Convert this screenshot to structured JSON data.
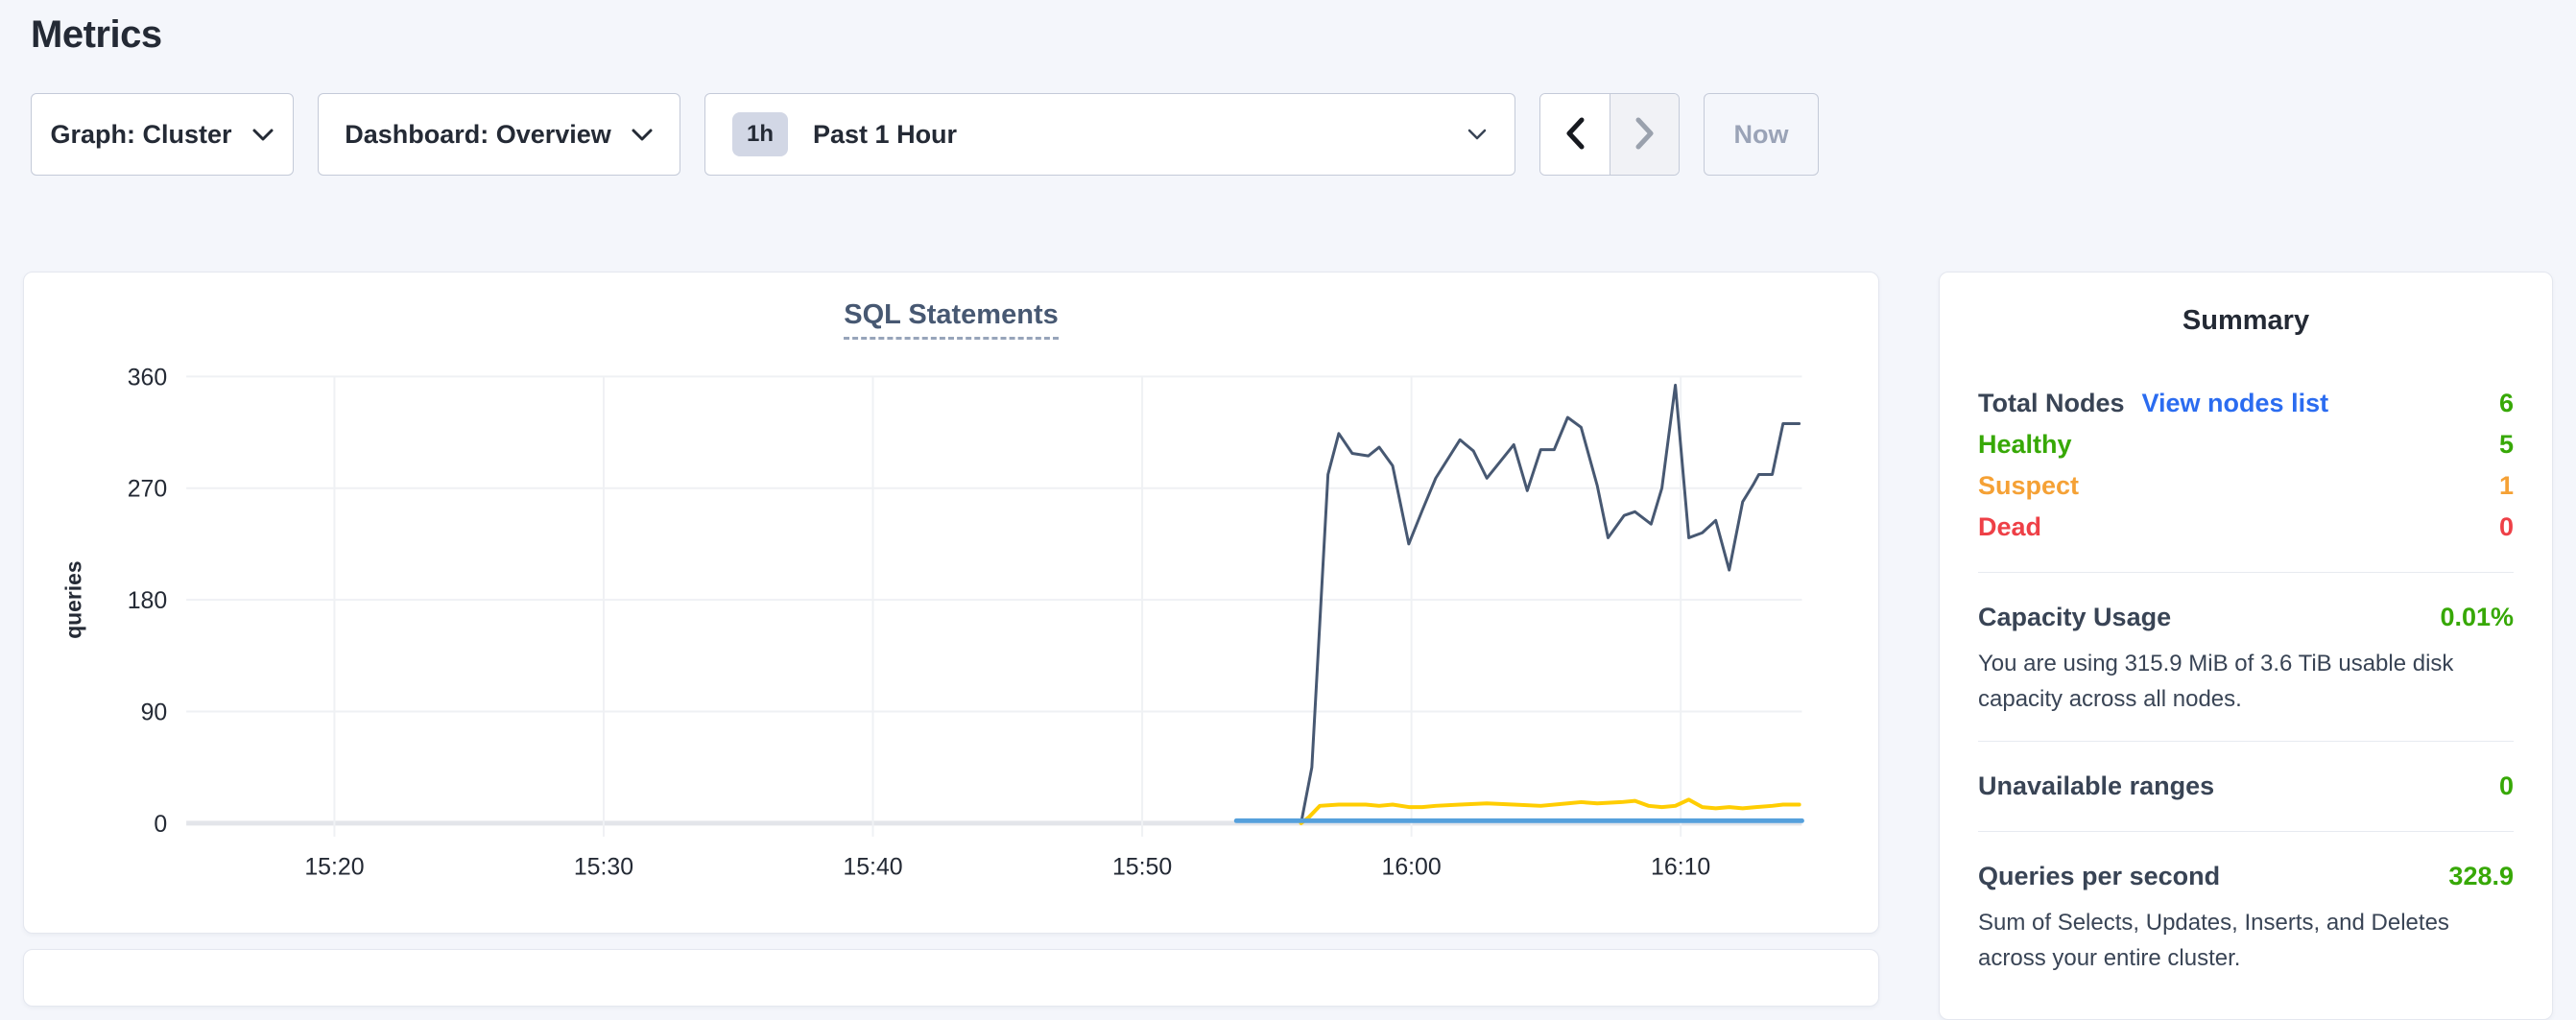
{
  "page": {
    "title": "Metrics"
  },
  "toolbar": {
    "graph_dropdown": {
      "label": "Graph: Cluster"
    },
    "dashboard_dropdown": {
      "label": "Dashboard: Overview"
    },
    "time_window": {
      "badge": "1h",
      "label": "Past 1 Hour"
    },
    "now_button": "Now"
  },
  "chart_card": {
    "title": "SQL Statements"
  },
  "chart_data": {
    "type": "line",
    "title": "SQL Statements",
    "xlabel": "",
    "ylabel": "queries",
    "ylim": [
      0,
      360
    ],
    "yticks": [
      0,
      90,
      180,
      270,
      360
    ],
    "x_unit": "minutes-after-15:00",
    "xlim_minutes": [
      14.5,
      74.5
    ],
    "xticks": [
      {
        "t": 20,
        "label": "15:20"
      },
      {
        "t": 30,
        "label": "15:30"
      },
      {
        "t": 40,
        "label": "15:40"
      },
      {
        "t": 50,
        "label": "15:50"
      },
      {
        "t": 60,
        "label": "16:00"
      },
      {
        "t": 70,
        "label": "16:10"
      }
    ],
    "grid": true,
    "legend": "none",
    "series": [
      {
        "name": "dark-slate-series",
        "color": "#475872",
        "points": [
          [
            55.9,
            0
          ],
          [
            56.3,
            45
          ],
          [
            56.9,
            281
          ],
          [
            57.3,
            314
          ],
          [
            57.8,
            298
          ],
          [
            58.4,
            296
          ],
          [
            58.8,
            303
          ],
          [
            59.3,
            288
          ],
          [
            59.9,
            225
          ],
          [
            60.4,
            252
          ],
          [
            60.9,
            278
          ],
          [
            61.8,
            309
          ],
          [
            62.3,
            300
          ],
          [
            62.8,
            278
          ],
          [
            63.8,
            305
          ],
          [
            64.3,
            268
          ],
          [
            64.8,
            301
          ],
          [
            65.3,
            301
          ],
          [
            65.8,
            327
          ],
          [
            66.3,
            319
          ],
          [
            66.9,
            272
          ],
          [
            67.3,
            230
          ],
          [
            67.9,
            248
          ],
          [
            68.3,
            251
          ],
          [
            68.9,
            241
          ],
          [
            69.3,
            270
          ],
          [
            69.8,
            353
          ],
          [
            70.3,
            230
          ],
          [
            70.8,
            234
          ],
          [
            71.3,
            244
          ],
          [
            71.8,
            204
          ],
          [
            72.3,
            259
          ],
          [
            72.7,
            273
          ],
          [
            72.9,
            281
          ],
          [
            73.4,
            281
          ],
          [
            73.8,
            322
          ],
          [
            74.4,
            322
          ]
        ]
      },
      {
        "name": "yellow-series",
        "color": "#ffcd02",
        "points": [
          [
            55.9,
            0
          ],
          [
            56.2,
            5
          ],
          [
            56.6,
            14
          ],
          [
            57.3,
            15
          ],
          [
            58.3,
            15
          ],
          [
            58.8,
            14
          ],
          [
            59.3,
            15
          ],
          [
            59.9,
            13
          ],
          [
            60.4,
            13
          ],
          [
            60.9,
            14
          ],
          [
            61.8,
            15
          ],
          [
            62.8,
            16
          ],
          [
            63.8,
            15
          ],
          [
            64.8,
            14
          ],
          [
            65.8,
            16
          ],
          [
            66.3,
            17
          ],
          [
            66.9,
            16
          ],
          [
            67.8,
            17
          ],
          [
            68.3,
            18
          ],
          [
            68.8,
            14
          ],
          [
            69.3,
            13
          ],
          [
            69.8,
            14
          ],
          [
            70.3,
            19
          ],
          [
            70.8,
            13
          ],
          [
            71.3,
            12
          ],
          [
            71.8,
            13
          ],
          [
            72.3,
            12
          ],
          [
            72.8,
            13
          ],
          [
            73.4,
            14
          ],
          [
            73.8,
            15
          ],
          [
            74.4,
            15
          ]
        ]
      },
      {
        "name": "blue-series",
        "color": "#55a0dc",
        "points": [
          [
            53.5,
            2
          ],
          [
            74.5,
            2
          ]
        ]
      }
    ]
  },
  "summary": {
    "title": "Summary",
    "nodes": {
      "label": "Total Nodes",
      "link": "View nodes list",
      "value": "6",
      "rows": [
        {
          "label": "Healthy",
          "value": "5"
        },
        {
          "label": "Suspect",
          "value": "1"
        },
        {
          "label": "Dead",
          "value": "0"
        }
      ]
    },
    "capacity": {
      "label": "Capacity Usage",
      "value": "0.01%",
      "description": "You are using 315.9 MiB of 3.6 TiB usable disk capacity across all nodes."
    },
    "unavailable": {
      "label": "Unavailable ranges",
      "value": "0"
    },
    "qps": {
      "label": "Queries per second",
      "value": "328.9",
      "description": "Sum of Selects, Updates, Inserts, and Deletes across your entire cluster."
    }
  },
  "colors": {
    "page_background": "#f4f6fb",
    "heading_text": "#242a35",
    "chart_title_text": "#475872",
    "link_blue": "#2b6cf0",
    "healthy_green": "#37a806",
    "suspect_orange": "#f5a135",
    "dead_red": "#ee4047",
    "series_dark_slate": "#475872",
    "series_yellow": "#ffcd02",
    "series_blue": "#55a0dc"
  }
}
